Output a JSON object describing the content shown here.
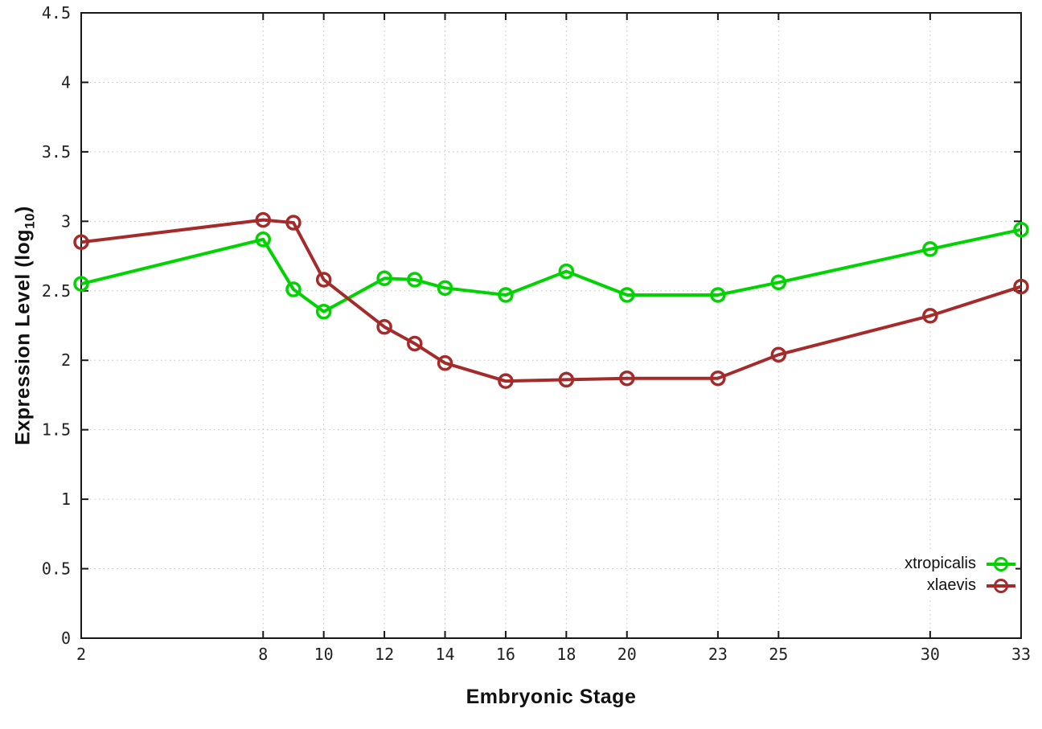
{
  "chart_data": {
    "type": "line",
    "title": "",
    "xlabel": "Embryonic Stage",
    "ylabel": "Expression Level (log10)",
    "ylabel_parts": {
      "prefix": "Expression Level (log",
      "subscript": "10",
      "suffix": ")"
    },
    "xlim": [
      2,
      33
    ],
    "ylim": [
      0,
      4.5
    ],
    "grid": true,
    "legend_position": "inside-bottom-right",
    "x": [
      2,
      8,
      9,
      10,
      12,
      13,
      14,
      16,
      18,
      20,
      23,
      25,
      30,
      33
    ],
    "xtick_values": [
      2,
      8,
      10,
      12,
      14,
      16,
      18,
      20,
      23,
      25,
      30,
      33
    ],
    "xtick_labels": [
      "2",
      "8",
      "10",
      "12",
      "14",
      "16",
      "18",
      "20",
      "23",
      "25",
      "30",
      "33"
    ],
    "ytick_values": [
      0,
      0.5,
      1,
      1.5,
      2,
      2.5,
      3,
      3.5,
      4,
      4.5
    ],
    "ytick_labels": [
      "0",
      "0.5",
      "1",
      "1.5",
      "2",
      "2.5",
      "3",
      "3.5",
      "4",
      "4.5"
    ],
    "series": [
      {
        "name": "xtropicalis",
        "color": "#00d300",
        "marker": "open-circle",
        "values": [
          2.55,
          2.87,
          2.51,
          2.35,
          2.59,
          2.58,
          2.52,
          2.47,
          2.64,
          2.47,
          2.47,
          2.56,
          2.8,
          2.94
        ]
      },
      {
        "name": "xlaevis",
        "color": "#a52a2a",
        "marker": "open-circle",
        "values": [
          2.85,
          3.01,
          2.99,
          2.58,
          2.24,
          2.12,
          1.98,
          1.85,
          1.86,
          1.87,
          1.87,
          2.04,
          2.32,
          2.53
        ]
      }
    ],
    "colors": {
      "grid": "#c3c3c3",
      "axis": "#181818",
      "tick_text": "#222222",
      "background": "#ffffff"
    }
  }
}
